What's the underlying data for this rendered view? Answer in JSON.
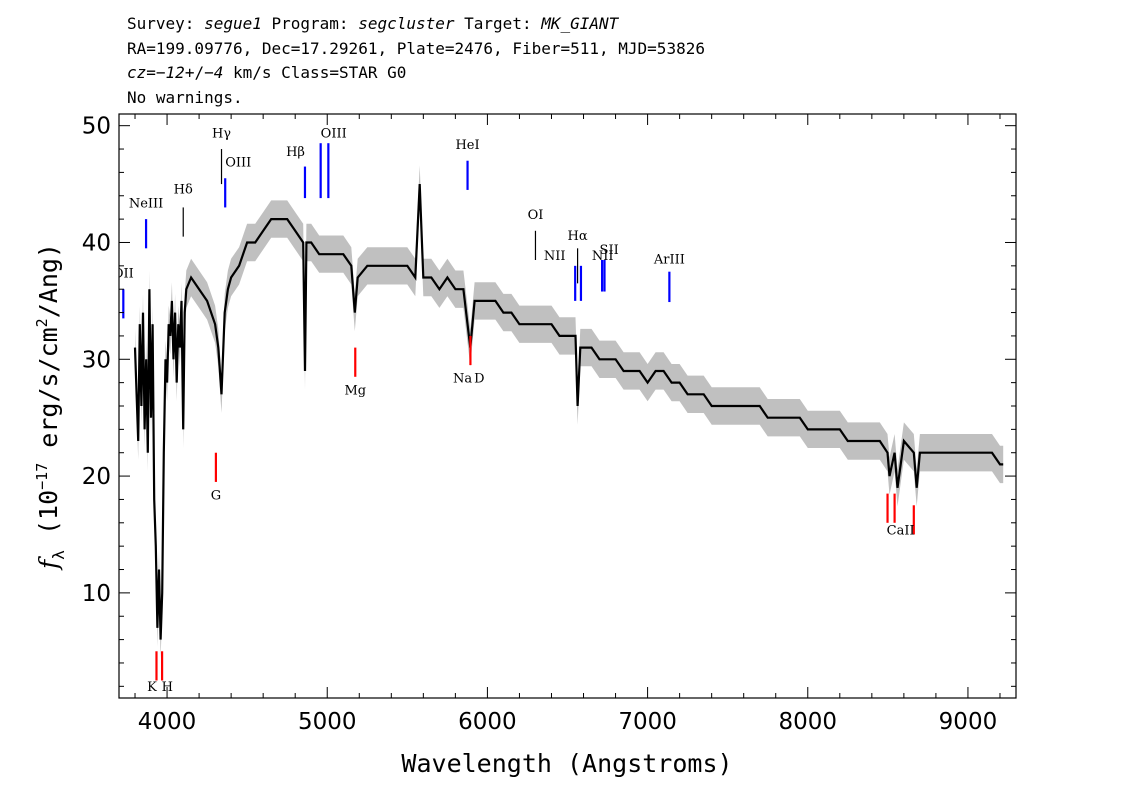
{
  "header": {
    "line1": {
      "survey_label": "Survey: ",
      "survey": "segue1",
      "program_label": " Program: ",
      "program": "segcluster",
      "target_label": " Target: ",
      "target": "MK_GIANT"
    },
    "line2": "RA=199.09776, Dec=17.29261, Plate=2476, Fiber=511, MJD=53826",
    "line3": {
      "cz_label": "cz",
      "cz_eq": "=",
      "cz_value": "−12",
      "cz_pm": "+/−",
      "cz_err": "4",
      "cz_rest": " km/s Class=STAR G0"
    },
    "line4": "No warnings."
  },
  "chart_data": {
    "type": "line",
    "xlabel": "Wavelength (Angstroms)",
    "ylabel_parts": {
      "f": "f",
      "sub": "λ",
      "open": " (10",
      "exp": "−17",
      "mid": " erg/s/cm",
      "exp2": "2",
      "close": "/Ang)"
    },
    "xlim": [
      3700,
      9300
    ],
    "ylim": [
      1,
      51
    ],
    "x_major_ticks": [
      4000,
      5000,
      6000,
      7000,
      8000,
      9000
    ],
    "x_minor_step": 200,
    "y_major_ticks": [
      10,
      20,
      30,
      40,
      50
    ],
    "y_minor_step": 2,
    "colors": {
      "flux": "#000000",
      "error_band": "#c0c0c0",
      "emission": "#0000ff",
      "absorption": "#ff0000",
      "marker": "#000000"
    },
    "series": [
      {
        "x": [
          3800,
          3810,
          3820,
          3830,
          3840,
          3850,
          3860,
          3870,
          3880,
          3890,
          3900,
          3910,
          3920,
          3930,
          3940,
          3950,
          3960,
          3970,
          3980,
          3990,
          4000,
          4010,
          4020,
          4030,
          4040,
          4050,
          4060,
          4070,
          4080,
          4090,
          4101,
          4110,
          4120,
          4150,
          4200,
          4250,
          4300,
          4320,
          4340,
          4360,
          4380,
          4400,
          4450,
          4500,
          4550,
          4600,
          4650,
          4700,
          4750,
          4800,
          4850,
          4861,
          4870,
          4900,
          4950,
          5000,
          5050,
          5100,
          5150,
          5172,
          5190,
          5250,
          5300,
          5350,
          5400,
          5450,
          5500,
          5550,
          5577,
          5600,
          5650,
          5700,
          5750,
          5800,
          5850,
          5893,
          5920,
          5950,
          6000,
          6050,
          6100,
          6150,
          6200,
          6250,
          6300,
          6350,
          6400,
          6450,
          6500,
          6550,
          6563,
          6580,
          6600,
          6650,
          6700,
          6750,
          6800,
          6850,
          6900,
          6950,
          7000,
          7050,
          7100,
          7150,
          7200,
          7250,
          7300,
          7350,
          7400,
          7450,
          7500,
          7550,
          7600,
          7650,
          7700,
          7750,
          7800,
          7850,
          7900,
          7950,
          8000,
          8050,
          8100,
          8150,
          8200,
          8250,
          8300,
          8350,
          8400,
          8450,
          8498,
          8510,
          8542,
          8560,
          8600,
          8662,
          8680,
          8700,
          8750,
          8800,
          8850,
          8900,
          8950,
          9000,
          9050,
          9100,
          9150,
          9200,
          9220
        ],
        "y": [
          31,
          27,
          23,
          33,
          26,
          34,
          24,
          30,
          22,
          36,
          25,
          33,
          18,
          14,
          7,
          12,
          6,
          10,
          22,
          30,
          28,
          33,
          32,
          35,
          30,
          34,
          28,
          33,
          31,
          35,
          24,
          34,
          36,
          37,
          36,
          35,
          33,
          31,
          27,
          34,
          36,
          37,
          38,
          40,
          40,
          41,
          42,
          42,
          42,
          41,
          40,
          29,
          40,
          40,
          39,
          39,
          39,
          39,
          38,
          34,
          37,
          38,
          38,
          38,
          38,
          38,
          38,
          37,
          45,
          37,
          37,
          36,
          37,
          36,
          36,
          31,
          35,
          35,
          35,
          35,
          34,
          34,
          33,
          33,
          33,
          33,
          33,
          32,
          32,
          32,
          26,
          31,
          31,
          31,
          30,
          30,
          30,
          29,
          29,
          29,
          28,
          29,
          29,
          28,
          28,
          27,
          27,
          27,
          26,
          26,
          26,
          26,
          26,
          26,
          26,
          25,
          25,
          25,
          25,
          25,
          24,
          24,
          24,
          24,
          24,
          23,
          23,
          23,
          23,
          23,
          22,
          20,
          22,
          19,
          23,
          22,
          19,
          22,
          22,
          22,
          22,
          22,
          22,
          22,
          22,
          22,
          22,
          21,
          21
        ]
      }
    ],
    "line_markers": [
      {
        "label": "OII",
        "x": 3727,
        "kind": "emission",
        "y0": 33.5,
        "y1": 36.0,
        "lx": 3727,
        "ly": 37.0,
        "anchor": "middle",
        "clip": true
      },
      {
        "label": "NeIII",
        "x": 3869,
        "kind": "emission",
        "y0": 39.5,
        "y1": 42.0,
        "lx": 3869,
        "ly": 43.0,
        "anchor": "middle"
      },
      {
        "label": "Hδ",
        "x": 4101,
        "kind": "marker",
        "y0": 40.5,
        "y1": 43.0,
        "lx": 4101,
        "ly": 44.2,
        "anchor": "middle"
      },
      {
        "label": "Hγ",
        "x": 4340,
        "kind": "marker",
        "y0": 45.0,
        "y1": 48.0,
        "lx": 4340,
        "ly": 49.0,
        "anchor": "middle"
      },
      {
        "label": "OIII",
        "x": 4363,
        "kind": "emission",
        "y0": 43.0,
        "y1": 45.5,
        "lx": 4363,
        "ly": 46.5,
        "anchor": "start"
      },
      {
        "label": "Hβ",
        "x": 4861,
        "kind": "emission",
        "y0": 43.8,
        "y1": 46.5,
        "lx": 4861,
        "ly": 47.4,
        "anchor": "end"
      },
      {
        "label": "OIII",
        "x": 4959,
        "kind": "emission",
        "y0": 43.8,
        "y1": 48.5,
        "lx": 4959,
        "ly": 49.0,
        "anchor": "start"
      },
      {
        "label": "OIII_b",
        "x": 5007,
        "kind": "emission",
        "y0": 43.8,
        "y1": 48.5,
        "lx": null,
        "ly": null,
        "anchor": "start"
      },
      {
        "label": "HeI",
        "x": 5876,
        "kind": "emission",
        "y0": 44.5,
        "y1": 47.0,
        "lx": 5876,
        "ly": 48.0,
        "anchor": "middle"
      },
      {
        "label": "OI",
        "x": 6300,
        "kind": "marker",
        "y0": 38.5,
        "y1": 41.0,
        "lx": 6300,
        "ly": 42.0,
        "anchor": "middle"
      },
      {
        "label": "NII",
        "x": 6548,
        "kind": "emission",
        "y0": 35.0,
        "y1": 38.0,
        "lx": 6420,
        "ly": 38.5,
        "anchor": "middle"
      },
      {
        "label": "Hα",
        "x": 6563,
        "kind": "marker",
        "y0": 36.5,
        "y1": 39.5,
        "lx": 6563,
        "ly": 40.2,
        "anchor": "middle"
      },
      {
        "label": "NII",
        "x": 6584,
        "kind": "emission",
        "y0": 35.0,
        "y1": 38.0,
        "lx": 6720,
        "ly": 38.5,
        "anchor": "middle"
      },
      {
        "label": "SII",
        "x": 6716,
        "kind": "emission",
        "y0": 35.8,
        "y1": 38.5,
        "lx": 6760,
        "ly": 39.0,
        "anchor": "middle"
      },
      {
        "label": "SII_b",
        "x": 6731,
        "kind": "emission",
        "y0": 35.8,
        "y1": 38.5,
        "lx": null,
        "ly": null,
        "anchor": "middle"
      },
      {
        "label": "ArIII",
        "x": 7136,
        "kind": "emission",
        "y0": 34.9,
        "y1": 37.5,
        "lx": 7136,
        "ly": 38.2,
        "anchor": "middle"
      },
      {
        "label": "K",
        "x": 3934,
        "kind": "absorption",
        "y0": 2.5,
        "y1": 5.0,
        "lx": 3936,
        "ly": 1.6,
        "anchor": "end"
      },
      {
        "label": "H",
        "x": 3969,
        "kind": "absorption",
        "y0": 2.5,
        "y1": 5.0,
        "lx": 3966,
        "ly": 1.6,
        "anchor": "start"
      },
      {
        "label": "G",
        "x": 4305,
        "kind": "absorption",
        "y0": 19.5,
        "y1": 22.0,
        "lx": 4305,
        "ly": 18.0,
        "anchor": "middle"
      },
      {
        "label": "Mg",
        "x": 5175,
        "kind": "absorption",
        "y0": 28.5,
        "y1": 31.0,
        "lx": 5175,
        "ly": 27.0,
        "anchor": "middle"
      },
      {
        "label": "Na",
        "x": 5894,
        "kind": "absorption",
        "y0": 29.5,
        "y1": 32.0,
        "lx": 5845,
        "ly": 28.0,
        "anchor": "middle"
      },
      {
        "label": "D",
        "x": null,
        "kind": "text",
        "y0": null,
        "y1": null,
        "lx": 5950,
        "ly": 28.0,
        "anchor": "middle"
      },
      {
        "label": "CaII",
        "x": 8498,
        "kind": "absorption",
        "y0": 16.0,
        "y1": 18.5,
        "lx": 8580,
        "ly": 15.0,
        "anchor": "middle"
      },
      {
        "label": "CaII_b",
        "x": 8542,
        "kind": "absorption",
        "y0": 16.0,
        "y1": 18.5,
        "lx": null,
        "ly": null,
        "anchor": "middle"
      },
      {
        "label": "CaII_c",
        "x": 8662,
        "kind": "absorption",
        "y0": 15.0,
        "y1": 17.5,
        "lx": null,
        "ly": null,
        "anchor": "middle"
      }
    ]
  }
}
